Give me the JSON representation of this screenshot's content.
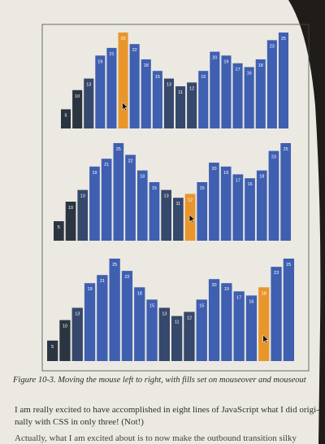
{
  "caption": "Figure 10-3. Moving the mouse left to right, with fills set on mouseover and mouseout",
  "body": {
    "line1": "I am really excited to have accomplished in eight lines of JavaScript what I did origi-",
    "line2": "nally with CSS in only three! (Not!)",
    "line3": "Actually, what I am excited about is to now make the outbound transition silky"
  },
  "colors": {
    "page": "#eceae3",
    "bar_dark": "#2b3542",
    "bar_mid": "#36486b",
    "bar_blue": "#3f5fb1",
    "highlight": "#e8962c",
    "label": "#ffffff"
  },
  "chart_data": [
    {
      "type": "bar",
      "values": [
        5,
        10,
        13,
        19,
        21,
        25,
        22,
        18,
        15,
        13,
        11,
        12,
        15,
        20,
        19,
        17,
        16,
        18,
        23,
        25
      ],
      "highlight_index": 5,
      "cursor_index": 5
    },
    {
      "type": "bar",
      "values": [
        5,
        10,
        13,
        19,
        21,
        25,
        22,
        18,
        15,
        13,
        11,
        12,
        15,
        20,
        19,
        17,
        16,
        18,
        23,
        25
      ],
      "highlight_index": 11,
      "cursor_index": 11
    },
    {
      "type": "bar",
      "values": [
        5,
        10,
        13,
        19,
        21,
        25,
        22,
        18,
        15,
        13,
        11,
        12,
        15,
        20,
        19,
        17,
        16,
        18,
        23,
        25
      ],
      "highlight_index": 17,
      "cursor_index": 17
    }
  ]
}
